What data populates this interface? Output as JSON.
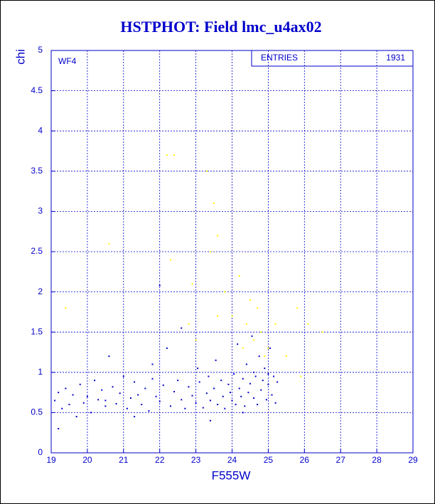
{
  "chart_data": {
    "type": "scatter",
    "title": "HSTPHOT: Field lmc_u4ax02",
    "x_label": "F555W",
    "y_label": "chi",
    "panel_label": "WF4",
    "stats": {
      "label": "ENTRIES",
      "value": 1931
    },
    "xlim": [
      19,
      29
    ],
    "ylim": [
      0,
      5
    ],
    "xticks": [
      19,
      20,
      21,
      22,
      23,
      24,
      25,
      26,
      27,
      28,
      29
    ],
    "yticks": [
      0,
      0.5,
      1,
      1.5,
      2,
      2.5,
      3,
      3.5,
      4,
      4.5,
      5
    ],
    "grid": true,
    "series": [
      {
        "color": "#0000cc",
        "x": [
          19.1,
          19.2,
          19.3,
          19.4,
          19.5,
          19.6,
          19.7,
          19.8,
          19.9,
          20.0,
          20.1,
          20.2,
          20.3,
          20.4,
          20.5,
          20.6,
          20.7,
          20.8,
          20.9,
          21.0,
          21.1,
          21.2,
          21.3,
          21.4,
          21.5,
          21.6,
          21.7,
          21.8,
          21.9,
          22.0,
          22.1,
          22.2,
          22.3,
          22.4,
          22.5,
          22.6,
          22.7,
          22.8,
          22.9,
          23.0,
          23.05,
          23.1,
          23.2,
          23.3,
          23.35,
          23.4,
          23.5,
          23.55,
          23.6,
          23.7,
          23.75,
          23.8,
          23.9,
          23.95,
          24.0,
          24.05,
          24.1,
          24.15,
          24.2,
          24.25,
          24.3,
          24.35,
          24.4,
          24.45,
          24.5,
          24.55,
          24.6,
          24.65,
          24.7,
          24.75,
          24.8,
          24.85,
          24.9,
          24.95,
          25.0,
          25.05,
          25.1,
          25.15,
          25.2,
          25.25,
          20.5,
          21.3,
          22.0,
          22.6,
          23.4,
          24.3,
          19.2,
          21.8,
          24.6,
          25.0
        ],
        "values": [
          0.65,
          0.75,
          0.55,
          0.8,
          0.6,
          0.72,
          0.45,
          0.85,
          0.62,
          0.7,
          0.5,
          0.9,
          0.66,
          0.78,
          0.58,
          1.2,
          0.82,
          0.61,
          0.74,
          0.95,
          0.55,
          0.68,
          0.88,
          0.72,
          0.6,
          0.8,
          0.52,
          0.92,
          0.7,
          0.64,
          0.84,
          1.3,
          0.58,
          0.76,
          0.9,
          0.66,
          0.55,
          0.82,
          0.71,
          0.62,
          1.05,
          0.88,
          0.56,
          0.74,
          0.95,
          0.65,
          0.8,
          1.15,
          0.6,
          0.9,
          0.7,
          0.55,
          0.85,
          0.75,
          0.65,
          0.98,
          0.6,
          1.35,
          0.8,
          0.7,
          0.92,
          0.58,
          1.1,
          0.75,
          0.86,
          1.45,
          0.68,
          0.95,
          0.6,
          1.2,
          0.78,
          0.9,
          1.05,
          0.66,
          0.85,
          1.3,
          0.72,
          0.95,
          0.62,
          0.88,
          0.65,
          0.45,
          2.08,
          1.55,
          0.4,
          0.5,
          0.3,
          1.1,
          1.0,
          0.98
        ]
      },
      {
        "color": "#ffff00",
        "x": [
          19.4,
          20.6,
          22.2,
          22.4,
          22.3,
          23.3,
          23.5,
          23.6,
          23.4,
          23.8,
          24.0,
          24.2,
          24.4,
          24.5,
          24.6,
          24.8,
          25.0,
          25.2,
          25.5,
          25.8,
          26.1,
          26.5,
          23.0,
          23.6,
          24.7,
          22.8,
          25.9,
          24.9,
          22.9,
          24.3
        ],
        "values": [
          1.8,
          2.6,
          3.7,
          3.7,
          2.4,
          3.5,
          3.1,
          2.7,
          2.5,
          2.0,
          1.7,
          2.2,
          1.6,
          1.9,
          1.4,
          1.5,
          1.3,
          1.6,
          1.2,
          1.8,
          1.6,
          1.5,
          1.4,
          1.7,
          1.8,
          1.6,
          0.95,
          1.2,
          2.1,
          1.3
        ]
      }
    ]
  }
}
